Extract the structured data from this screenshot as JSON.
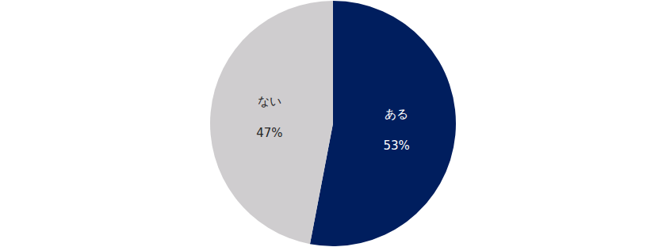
{
  "chart_data": {
    "type": "pie",
    "categories": [
      "ある",
      "ない"
    ],
    "values": [
      53,
      47
    ],
    "value_labels": [
      "53%",
      "47%"
    ],
    "colors": [
      "#001e5e",
      "#cfcdcf"
    ],
    "data_labels": true
  }
}
